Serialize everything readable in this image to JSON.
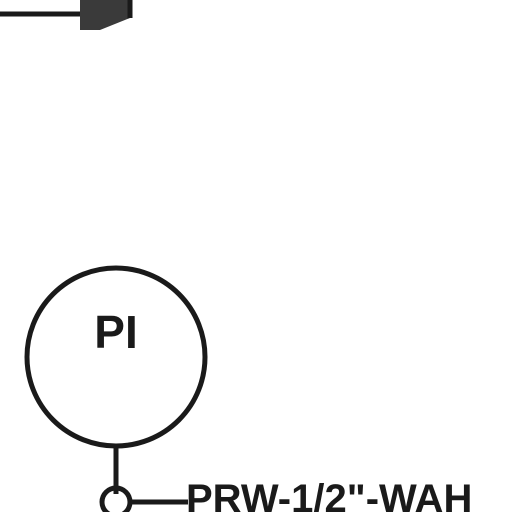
{
  "diagram": {
    "instrument": {
      "tag": "PI"
    },
    "pipe_line": {
      "label": "PRW-1/2\"-WAH"
    },
    "colors": {
      "line": "#1a1a1a",
      "arrowhead": "#3a3a3a",
      "background": "#ffffff"
    }
  }
}
